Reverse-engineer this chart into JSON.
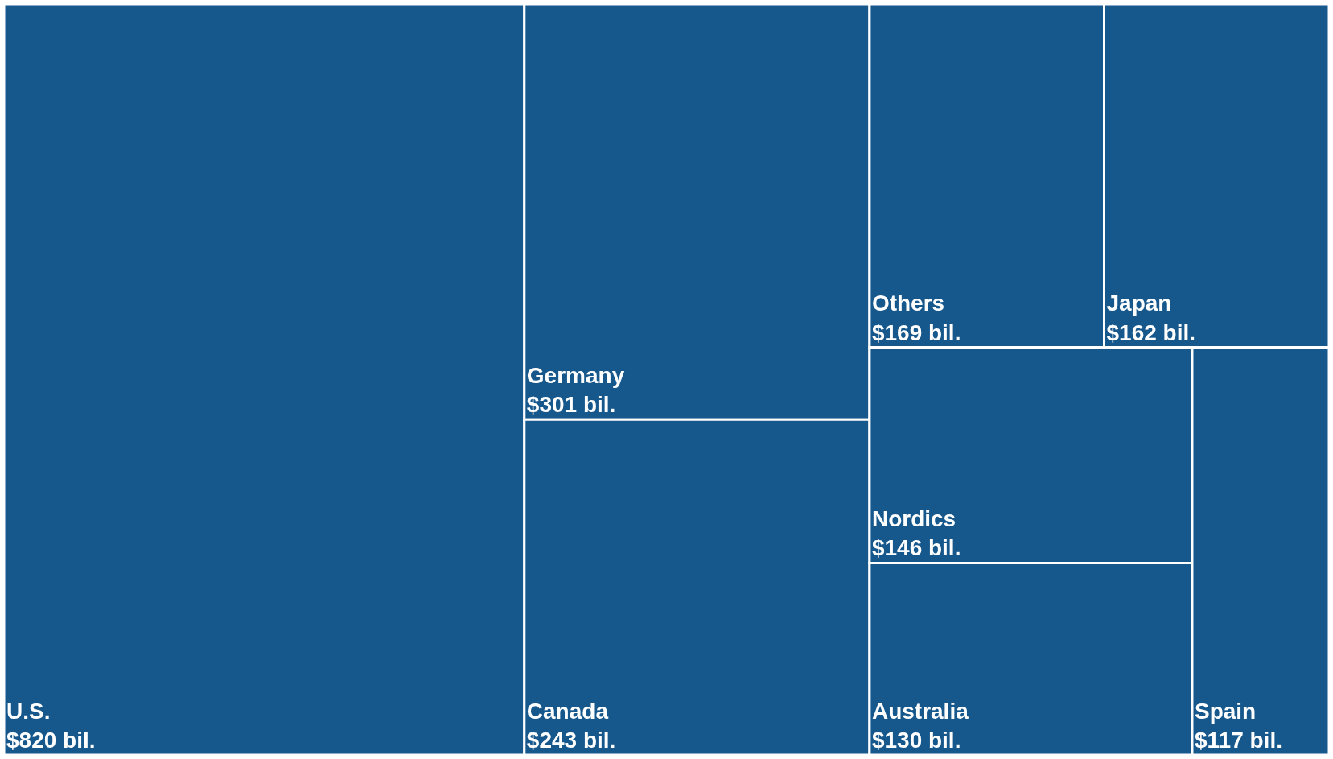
{
  "chart_data": {
    "type": "other",
    "categories": [
      "U.S.",
      "Germany",
      "Canada",
      "Others",
      "Japan",
      "Nordics",
      "Australia",
      "Spain"
    ],
    "values": [
      820,
      301,
      243,
      169,
      162,
      146,
      130,
      117
    ],
    "value_labels": [
      "$820 bil.",
      "$301 bil.",
      "$243 bil.",
      "$169 bil.",
      "$162 bil.",
      "$146 bil.",
      "$130 bil.",
      "$117 bil."
    ],
    "color": "#16578c"
  }
}
